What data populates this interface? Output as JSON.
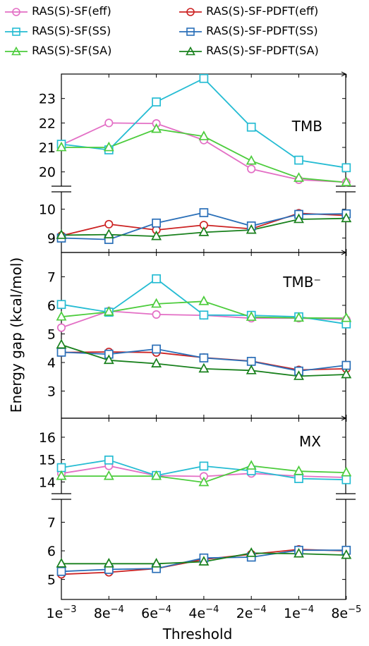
{
  "chart_data": {
    "type": "line",
    "ylabel": "Energy gap (kcal/mol)",
    "xlabel": "Threshold",
    "categories": [
      "1e−3",
      "8e−4",
      "6e−4",
      "4e−4",
      "2e−4",
      "1e−4",
      "8e−5"
    ],
    "legend": [
      {
        "label": "RAS(S)-SF(eff)",
        "color": "#e36fc5",
        "marker": "circle"
      },
      {
        "label": "RAS(S)-SF-PDFT(eff)",
        "color": "#cc2222",
        "marker": "circle"
      },
      {
        "label": "RAS(S)-SF(SS)",
        "color": "#25bcd3",
        "marker": "square"
      },
      {
        "label": "RAS(S)-SF-PDFT(SS)",
        "color": "#2a6fb8",
        "marker": "square"
      },
      {
        "label": "RAS(S)-SF(SA)",
        "color": "#4ccc3c",
        "marker": "triangle"
      },
      {
        "label": "RAS(S)-SF-PDFT(SA)",
        "color": "#18801c",
        "marker": "triangle"
      }
    ],
    "panels": [
      {
        "name": "TMB",
        "upper": {
          "yticks": [
            20,
            21,
            22,
            23
          ],
          "series": [
            {
              "key": "sf_eff",
              "values": [
                21.1,
                22.0,
                21.98,
                21.3,
                20.12,
                19.68,
                19.58
              ]
            },
            {
              "key": "sf_ss",
              "values": [
                21.13,
                20.9,
                22.86,
                23.82,
                21.83,
                20.48,
                20.17
              ]
            },
            {
              "key": "sf_sa",
              "values": [
                21.0,
                21.0,
                21.75,
                21.45,
                20.45,
                19.75,
                19.57
              ]
            }
          ]
        },
        "lower": {
          "yticks": [
            9,
            10
          ],
          "series": [
            {
              "key": "pdft_eff",
              "values": [
                9.08,
                9.48,
                9.28,
                9.45,
                9.32,
                9.86,
                9.78
              ]
            },
            {
              "key": "pdft_ss",
              "values": [
                9.0,
                8.95,
                9.52,
                9.88,
                9.42,
                9.82,
                9.84
              ]
            },
            {
              "key": "pdft_sa",
              "values": [
                9.1,
                9.12,
                9.06,
                9.2,
                9.28,
                9.65,
                9.68
              ]
            }
          ]
        }
      },
      {
        "name": "TMB⁻",
        "yticks": [
          3,
          4,
          5,
          6,
          7
        ],
        "series": [
          {
            "key": "sf_eff",
            "values": [
              5.22,
              5.8,
              5.68,
              5.65,
              5.55,
              5.55,
              5.5
            ]
          },
          {
            "key": "sf_ss",
            "values": [
              6.03,
              5.76,
              6.93,
              5.66,
              5.65,
              5.6,
              5.35
            ]
          },
          {
            "key": "sf_sa",
            "values": [
              5.6,
              5.77,
              6.05,
              6.14,
              5.59,
              5.56,
              5.55
            ]
          },
          {
            "key": "pdft_eff",
            "values": [
              4.35,
              4.37,
              4.35,
              4.17,
              4.05,
              3.74,
              3.78
            ]
          },
          {
            "key": "pdft_ss",
            "values": [
              4.36,
              4.29,
              4.47,
              4.16,
              4.04,
              3.7,
              3.9
            ]
          },
          {
            "key": "pdft_sa",
            "values": [
              4.62,
              4.08,
              3.96,
              3.78,
              3.72,
              3.52,
              3.58
            ]
          }
        ]
      },
      {
        "name": "MX",
        "upper": {
          "yticks": [
            14,
            15,
            16
          ],
          "series": [
            {
              "key": "sf_eff",
              "values": [
                14.38,
                14.72,
                14.28,
                14.25,
                14.38,
                14.26,
                14.2
              ]
            },
            {
              "key": "sf_ss",
              "values": [
                14.64,
                14.98,
                14.29,
                14.71,
                14.5,
                14.15,
                14.1
              ]
            },
            {
              "key": "sf_sa",
              "values": [
                14.26,
                14.26,
                14.26,
                13.98,
                14.72,
                14.48,
                14.42
              ]
            }
          ]
        },
        "lower": {
          "yticks": [
            5,
            6,
            7
          ],
          "series": [
            {
              "key": "pdft_eff",
              "values": [
                5.18,
                5.25,
                5.38,
                5.7,
                5.88,
                6.05,
                6.0
              ]
            },
            {
              "key": "pdft_ss",
              "values": [
                5.28,
                5.35,
                5.38,
                5.75,
                5.78,
                6.02,
                6.02
              ]
            },
            {
              "key": "pdft_sa",
              "values": [
                5.55,
                5.55,
                5.55,
                5.62,
                5.92,
                5.9,
                5.85
              ]
            }
          ]
        }
      }
    ]
  }
}
